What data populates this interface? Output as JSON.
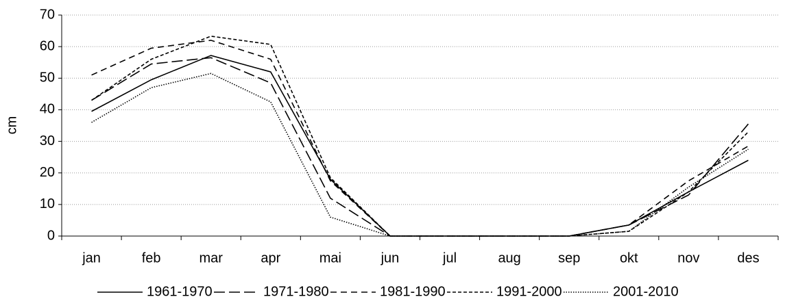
{
  "chart_data": {
    "type": "line",
    "y_label": "cm",
    "categories": [
      "jan",
      "feb",
      "mar",
      "apr",
      "mai",
      "jun",
      "jul",
      "aug",
      "sep",
      "okt",
      "nov",
      "des"
    ],
    "series": [
      {
        "name": "1961-1970",
        "color": "#000000",
        "dash": "solid",
        "values": [
          39.5,
          49.5,
          57.2,
          52,
          18,
          0,
          0,
          0,
          0,
          3.5,
          14,
          24
        ]
      },
      {
        "name": "1971-1980",
        "color": "#000000",
        "dash": "long-dash",
        "values": [
          43,
          54.5,
          56.5,
          48.5,
          12,
          0,
          0,
          0,
          0,
          3.5,
          13,
          35.5
        ]
      },
      {
        "name": "1981-1990",
        "color": "#000000",
        "dash": "dash",
        "values": [
          51,
          59.5,
          62,
          56,
          17.5,
          0,
          0,
          0,
          0,
          3.5,
          17.5,
          28.5
        ]
      },
      {
        "name": "1991-2000",
        "color": "#000000",
        "dash": "short-dash",
        "values": [
          43,
          56,
          63.3,
          60.7,
          18.5,
          0,
          0,
          0,
          0,
          1.5,
          14,
          33
        ]
      },
      {
        "name": "2001-2010",
        "color": "#000000",
        "dash": "dot",
        "values": [
          36,
          47,
          51.5,
          42.5,
          6,
          0,
          0,
          0,
          0,
          1.5,
          15.5,
          27.5
        ]
      }
    ],
    "ylim": [
      0,
      70
    ],
    "yticks": [
      0,
      10,
      20,
      30,
      40,
      50,
      60,
      70
    ],
    "grid": true,
    "legend": "bottom"
  }
}
